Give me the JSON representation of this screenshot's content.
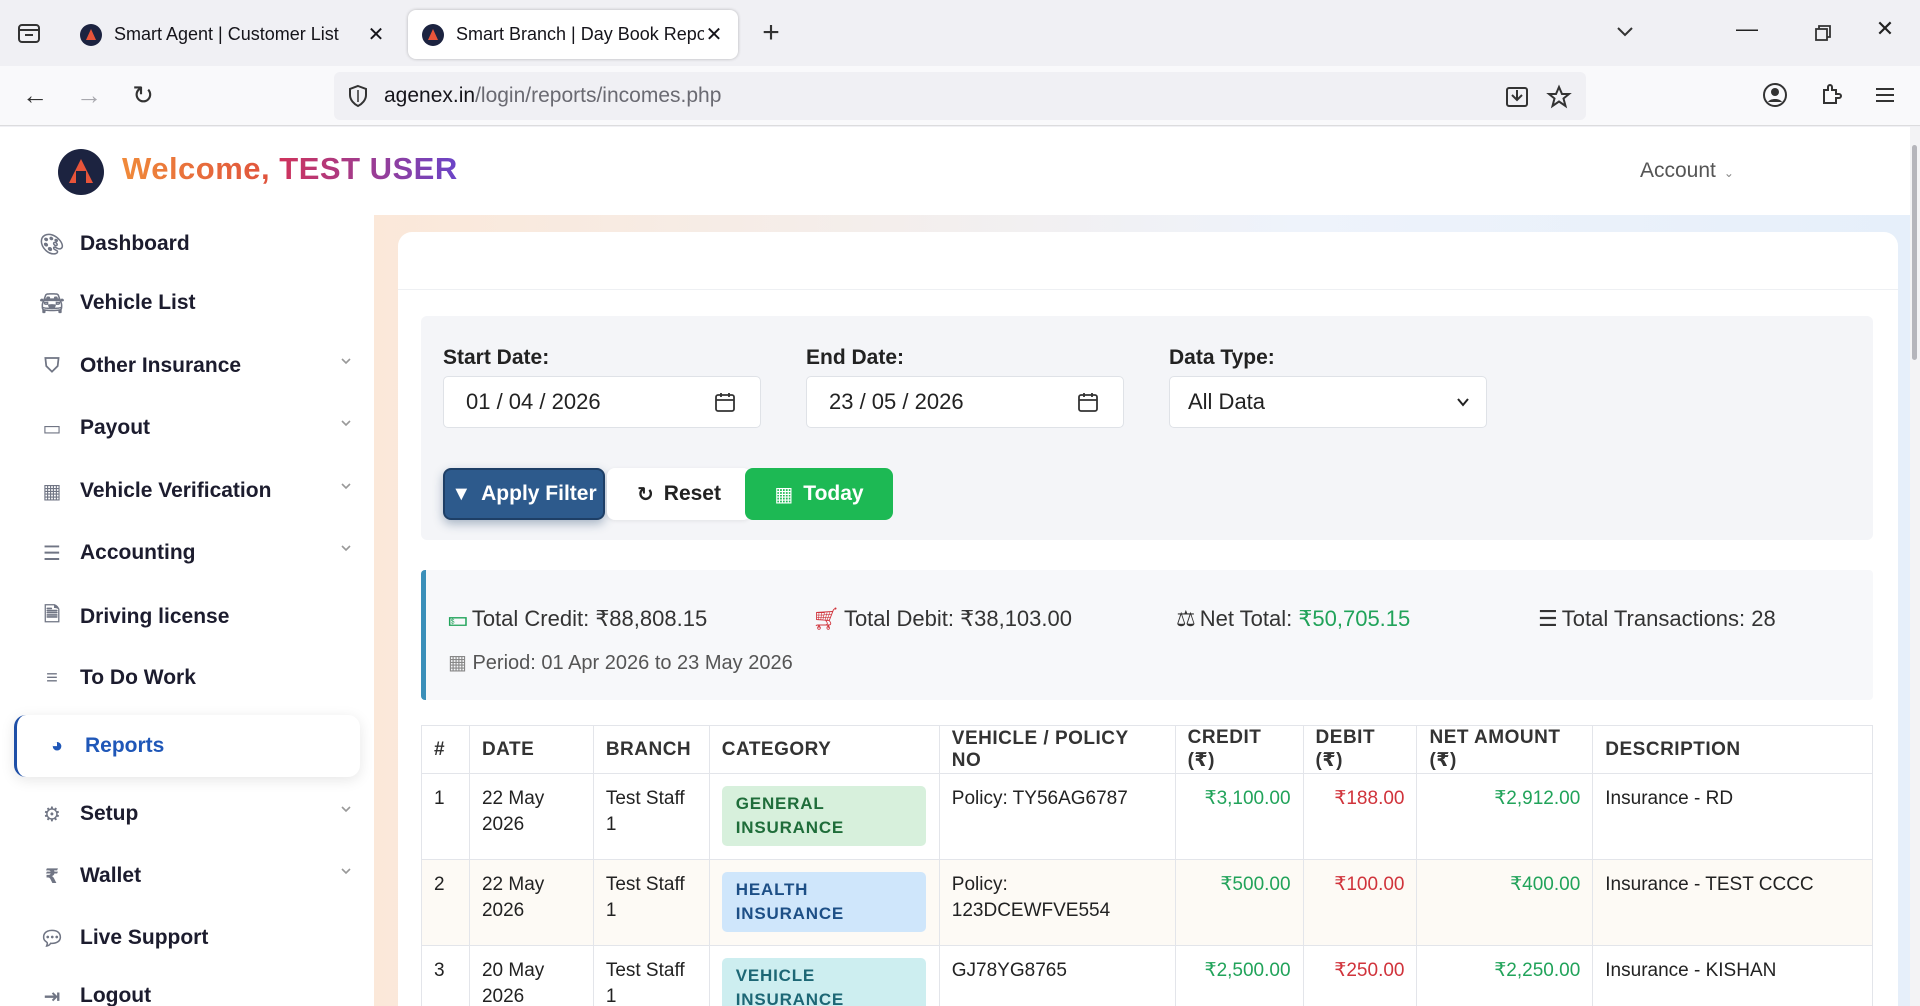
{
  "browser": {
    "tabs": [
      {
        "title": "Smart Agent | Customer List",
        "active": false
      },
      {
        "title": "Smart Branch | Day Book Report",
        "active": true
      }
    ],
    "url_host": "agenex.in",
    "url_path": "/login/reports/incomes.php"
  },
  "header": {
    "welcome": "Welcome,",
    "user": "TEST USER",
    "account_label": "Account"
  },
  "sidebar": {
    "items": [
      {
        "label": "Dashboard",
        "icon": "palette-icon",
        "expandable": false
      },
      {
        "label": "Vehicle List",
        "icon": "car-icon",
        "expandable": false
      },
      {
        "label": "Other Insurance",
        "icon": "shield-icon",
        "expandable": true
      },
      {
        "label": "Payout",
        "icon": "credit-card-icon",
        "expandable": true
      },
      {
        "label": "Vehicle Verification",
        "icon": "building-icon",
        "expandable": true
      },
      {
        "label": "Accounting",
        "icon": "sliders-icon",
        "expandable": true
      },
      {
        "label": "Driving license",
        "icon": "file-icon",
        "expandable": false
      },
      {
        "label": "To Do Work",
        "icon": "list-icon",
        "expandable": false
      },
      {
        "label": "Reports",
        "icon": "pie-chart-icon",
        "expandable": false,
        "active": true
      },
      {
        "label": "Setup",
        "icon": "gear-icon",
        "expandable": true
      },
      {
        "label": "Wallet",
        "icon": "rupee-icon",
        "expandable": true
      },
      {
        "label": "Live Support",
        "icon": "chat-icon",
        "expandable": false
      },
      {
        "label": "Logout",
        "icon": "logout-icon",
        "expandable": false
      }
    ]
  },
  "filter": {
    "start_label": "Start Date:",
    "start_value": "01 / 04 / 2026",
    "end_label": "End Date:",
    "end_value": "23 / 05 / 2026",
    "type_label": "Data Type:",
    "type_value": "All Data",
    "apply_label": "Apply Filter",
    "reset_label": "Reset",
    "today_label": "Today"
  },
  "summary": {
    "credit_label": "Total Credit: ",
    "credit_value": "₹88,808.15",
    "debit_label": "Total Debit: ",
    "debit_value": "₹38,103.00",
    "net_label": "Net Total: ",
    "net_value": "₹50,705.15",
    "tx_label": "Total Transactions: ",
    "tx_value": "28",
    "period": "Period: 01 Apr 2026 to 23 May 2026"
  },
  "table": {
    "headers": [
      "#",
      "DATE",
      "BRANCH",
      "CATEGORY",
      "VEHICLE / POLICY NO",
      "CREDIT (₹)",
      "DEBIT (₹)",
      "NET AMOUNT (₹)",
      "DESCRIPTION"
    ],
    "rows": [
      {
        "no": "1",
        "date_day": "22 May",
        "date_year": "2026",
        "branch_a": "Test Staff",
        "branch_b": "1",
        "cat_a": "GENERAL",
        "cat_b": "INSURANCE",
        "cat_type": "general",
        "policy_a": "Policy: TY56AG6787",
        "policy_b": "",
        "credit": "₹3,100.00",
        "debit": "₹188.00",
        "net": "₹2,912.00",
        "desc": "Insurance - RD"
      },
      {
        "no": "2",
        "date_day": "22 May",
        "date_year": "2026",
        "branch_a": "Test Staff",
        "branch_b": "1",
        "cat_a": "HEALTH",
        "cat_b": "INSURANCE",
        "cat_type": "health",
        "policy_a": "Policy:",
        "policy_b": "123DCEWFVE554",
        "credit": "₹500.00",
        "debit": "₹100.00",
        "net": "₹400.00",
        "desc": "Insurance - TEST CCCC"
      },
      {
        "no": "3",
        "date_day": "20 May",
        "date_year": "2026",
        "branch_a": "Test Staff",
        "branch_b": "1",
        "cat_a": "VEHICLE",
        "cat_b": "INSURANCE",
        "cat_type": "vehicle",
        "policy_a": "GJ78YG8765",
        "policy_b": "",
        "credit": "₹2,500.00",
        "debit": "₹250.00",
        "net": "₹2,250.00",
        "desc": "Insurance - KISHAN"
      }
    ]
  }
}
